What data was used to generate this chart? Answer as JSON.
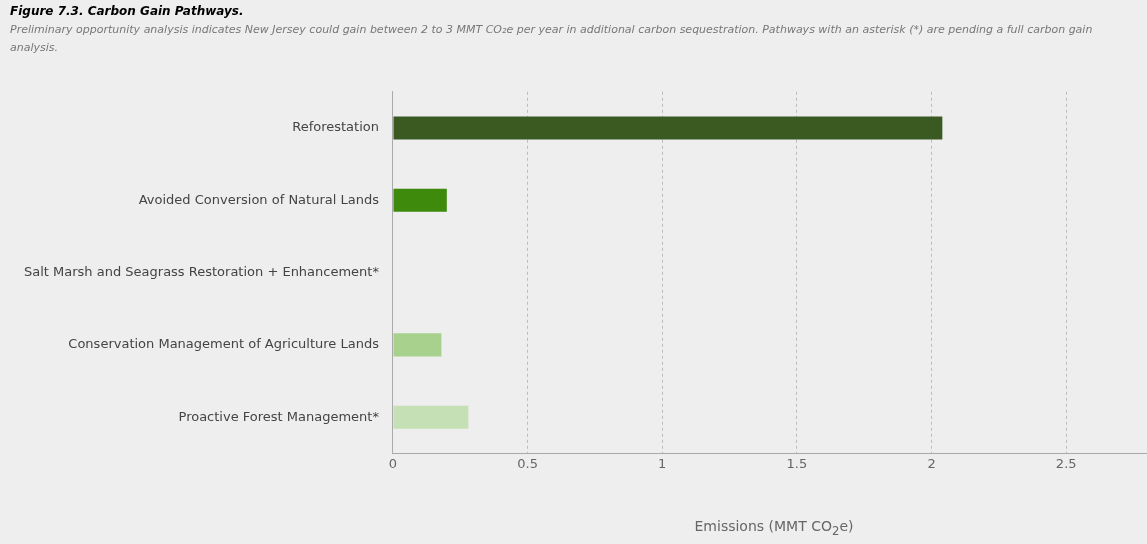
{
  "chart_data": {
    "type": "bar",
    "orientation": "horizontal",
    "title": "Figure 7.3. Carbon Gain Pathways.",
    "subtitle": "Preliminary opportunity analysis indicates New Jersey could gain between 2 to 3 MMT CO₂e per year in additional carbon sequestration. Pathways with an asterisk (*) are pending a full carbon gain analysis.",
    "categories": [
      "Reforestation",
      "Avoided Conversion of Natural Lands",
      "Salt Marsh and Seagrass Restoration + Enhancement*",
      "Conservation Management of Agriculture Lands",
      "Proactive Forest Management*"
    ],
    "values": [
      2.04,
      0.2,
      null,
      0.18,
      0.28
    ],
    "colors": [
      "#3a5a22",
      "#3d8a0c",
      null,
      "#a9d18e",
      "#c5e0b4"
    ],
    "xlabel": "Emissions (MMT CO$_{2}$e)",
    "xlim": [
      0,
      2.8
    ],
    "xticks": [
      0,
      0.5,
      1,
      1.5,
      2,
      2.5
    ],
    "grid": "x",
    "legend": false
  }
}
